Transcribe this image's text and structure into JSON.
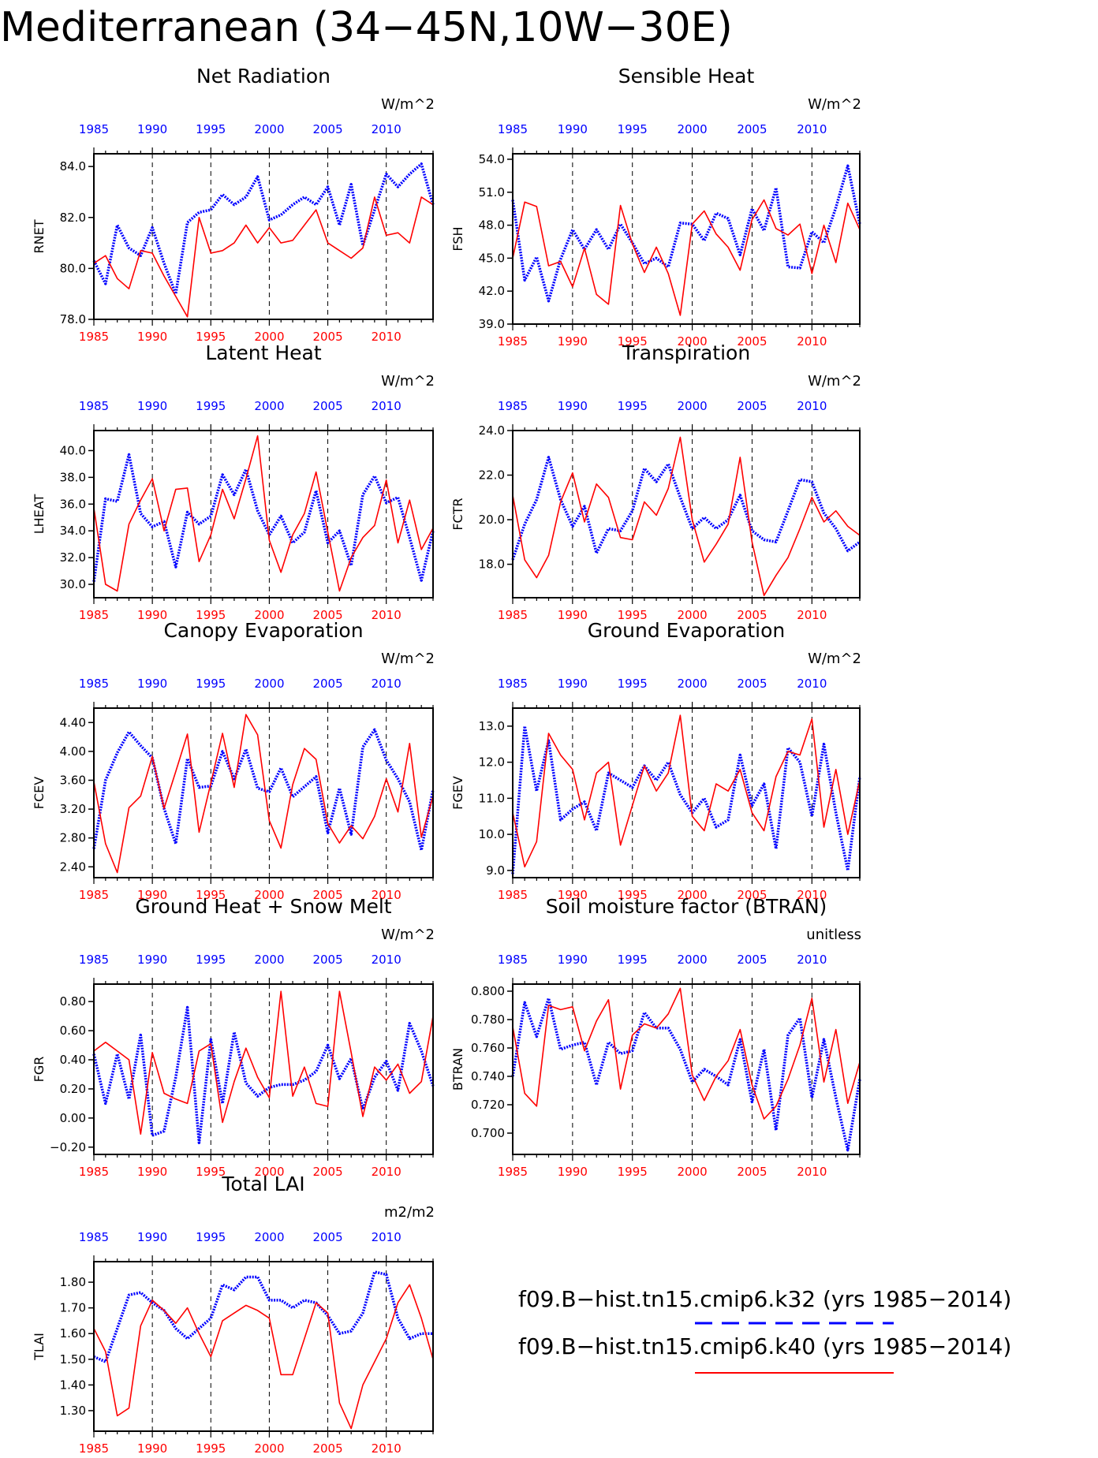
{
  "title": "Mediterranean (34−45N,10W−30E)",
  "colors": {
    "k32": "#0000ff",
    "k40": "#ff0000",
    "axis": "#000000"
  },
  "legend": [
    {
      "label": "f09.B−hist.tn15.cmip6.k32 (yrs 1985−2014)",
      "color": "#0000ff",
      "style": "dashed"
    },
    {
      "label": "f09.B−hist.tn15.cmip6.k40 (yrs 1985−2014)",
      "color": "#ff0000",
      "style": "solid"
    }
  ],
  "chart_data": [
    {
      "type": "line",
      "id": "rnet",
      "title": "Net Radiation",
      "ylabel": "RNET",
      "units": "W/m^2",
      "xlim": [
        1985,
        2014
      ],
      "xticks": [
        1985,
        1990,
        1995,
        2000,
        2005,
        2010
      ],
      "ylim": [
        78.0,
        84.5
      ],
      "yticks": [
        "78.0",
        "80.0",
        "82.0",
        "84.0"
      ],
      "x": [
        1985,
        1986,
        1987,
        1988,
        1989,
        1990,
        1991,
        1992,
        1993,
        1994,
        1995,
        1996,
        1997,
        1998,
        1999,
        2000,
        2001,
        2002,
        2003,
        2004,
        2005,
        2006,
        2007,
        2008,
        2009,
        2010,
        2011,
        2012,
        2013,
        2014
      ],
      "series": [
        {
          "key": "k32",
          "values": [
            80.3,
            79.4,
            81.7,
            80.8,
            80.5,
            81.6,
            80.2,
            79.0,
            81.8,
            82.2,
            82.3,
            82.9,
            82.5,
            82.8,
            83.6,
            81.9,
            82.1,
            82.5,
            82.8,
            82.5,
            83.2,
            81.7,
            83.3,
            80.9,
            82.3,
            83.7,
            83.2,
            83.7,
            84.1,
            82.5
          ]
        },
        {
          "key": "k40",
          "values": [
            80.2,
            80.5,
            79.6,
            79.2,
            80.7,
            80.6,
            79.7,
            78.9,
            78.1,
            82.0,
            80.6,
            80.7,
            81.0,
            81.7,
            81.0,
            81.6,
            81.0,
            81.1,
            81.7,
            82.3,
            81.0,
            80.7,
            80.4,
            80.8,
            82.8,
            81.3,
            81.4,
            81.0,
            82.8,
            82.5
          ]
        }
      ]
    },
    {
      "type": "line",
      "id": "fsh",
      "title": "Sensible Heat",
      "ylabel": "FSH",
      "units": "W/m^2",
      "xlim": [
        1985,
        2014
      ],
      "xticks": [
        1985,
        1990,
        1995,
        2000,
        2005,
        2010
      ],
      "ylim": [
        39.0,
        54.5
      ],
      "yticks": [
        "39.0",
        "42.0",
        "45.0",
        "48.0",
        "51.0",
        "54.0"
      ],
      "x": [
        1985,
        1986,
        1987,
        1988,
        1989,
        1990,
        1991,
        1992,
        1993,
        1994,
        1995,
        1996,
        1997,
        1998,
        1999,
        2000,
        2001,
        2002,
        2003,
        2004,
        2005,
        2006,
        2007,
        2008,
        2009,
        2010,
        2011,
        2012,
        2013,
        2014
      ],
      "series": [
        {
          "key": "k32",
          "values": [
            50.3,
            43.0,
            45.1,
            41.1,
            44.9,
            47.6,
            45.8,
            47.6,
            45.8,
            48.1,
            46.4,
            44.5,
            45.0,
            44.2,
            48.2,
            48.1,
            46.6,
            49.1,
            48.6,
            45.3,
            49.5,
            47.5,
            51.4,
            44.2,
            44.1,
            47.4,
            46.4,
            49.6,
            53.4,
            48.1
          ]
        },
        {
          "key": "k40",
          "values": [
            45.0,
            50.1,
            49.7,
            44.3,
            44.7,
            42.4,
            45.9,
            41.7,
            40.8,
            49.8,
            46.3,
            43.7,
            46.0,
            43.6,
            39.8,
            48.1,
            49.3,
            47.2,
            46.0,
            43.9,
            48.5,
            50.3,
            47.7,
            47.1,
            48.1,
            43.6,
            48.0,
            44.6,
            50.0,
            47.6
          ]
        }
      ]
    },
    {
      "type": "line",
      "id": "lheat",
      "title": "Latent Heat",
      "ylabel": "LHEAT",
      "units": "W/m^2",
      "xlim": [
        1985,
        2014
      ],
      "xticks": [
        1985,
        1990,
        1995,
        2000,
        2005,
        2010
      ],
      "ylim": [
        29.0,
        41.5
      ],
      "yticks": [
        "30.0",
        "32.0",
        "34.0",
        "36.0",
        "38.0",
        "40.0"
      ],
      "x": [
        1985,
        1986,
        1987,
        1988,
        1989,
        1990,
        1991,
        1992,
        1993,
        1994,
        1995,
        1996,
        1997,
        1998,
        1999,
        2000,
        2001,
        2002,
        2003,
        2004,
        2005,
        2006,
        2007,
        2008,
        2009,
        2010,
        2011,
        2012,
        2013,
        2014
      ],
      "series": [
        {
          "key": "k32",
          "values": [
            30.2,
            36.4,
            36.2,
            39.7,
            35.3,
            34.3,
            34.7,
            31.3,
            35.4,
            34.5,
            35.1,
            38.2,
            36.7,
            38.6,
            35.5,
            33.7,
            35.1,
            33.1,
            33.9,
            37.0,
            33.1,
            34.0,
            31.4,
            36.7,
            38.1,
            36.1,
            36.5,
            33.5,
            30.3,
            34.0
          ]
        },
        {
          "key": "k40",
          "values": [
            35.7,
            30.0,
            29.5,
            34.5,
            36.3,
            37.9,
            34.0,
            37.1,
            37.2,
            31.7,
            33.7,
            37.1,
            34.9,
            37.9,
            41.1,
            33.3,
            30.9,
            33.7,
            35.3,
            38.4,
            33.9,
            29.5,
            32.0,
            33.5,
            34.4,
            37.8,
            33.1,
            36.3,
            32.6,
            34.2
          ]
        }
      ]
    },
    {
      "type": "line",
      "id": "fctr",
      "title": "Transpiration",
      "ylabel": "FCTR",
      "units": "W/m^2",
      "xlim": [
        1985,
        2014
      ],
      "xticks": [
        1985,
        1990,
        1995,
        2000,
        2005,
        2010
      ],
      "ylim": [
        16.5,
        24.0
      ],
      "yticks": [
        "18.0",
        "20.0",
        "22.0",
        "24.0"
      ],
      "x": [
        1985,
        1986,
        1987,
        1988,
        1989,
        1990,
        1991,
        1992,
        1993,
        1994,
        1995,
        1996,
        1997,
        1998,
        1999,
        2000,
        2001,
        2002,
        2003,
        2004,
        2005,
        2006,
        2007,
        2008,
        2009,
        2010,
        2011,
        2012,
        2013,
        2014
      ],
      "series": [
        {
          "key": "k32",
          "values": [
            18.2,
            19.8,
            20.9,
            22.8,
            20.9,
            19.7,
            20.6,
            18.5,
            19.6,
            19.5,
            20.4,
            22.3,
            21.7,
            22.5,
            21.0,
            19.6,
            20.1,
            19.6,
            20.0,
            21.1,
            19.5,
            19.1,
            19.0,
            20.4,
            21.8,
            21.7,
            20.3,
            19.6,
            18.6,
            19.0
          ]
        },
        {
          "key": "k40",
          "values": [
            21.1,
            18.2,
            17.4,
            18.4,
            20.8,
            22.1,
            19.9,
            21.6,
            21.0,
            19.2,
            19.1,
            20.8,
            20.2,
            21.4,
            23.7,
            20.0,
            18.1,
            18.9,
            19.8,
            22.8,
            19.0,
            16.6,
            17.5,
            18.3,
            19.6,
            21.0,
            19.9,
            20.4,
            19.7,
            19.3
          ]
        }
      ]
    },
    {
      "type": "line",
      "id": "fcev",
      "title": "Canopy Evaporation",
      "ylabel": "FCEV",
      "units": "W/m^2",
      "xlim": [
        1985,
        2014
      ],
      "xticks": [
        1985,
        1990,
        1995,
        2000,
        2005,
        2010
      ],
      "ylim": [
        2.25,
        4.6
      ],
      "yticks": [
        "2.40",
        "2.80",
        "3.20",
        "3.60",
        "4.00",
        "4.40"
      ],
      "x": [
        1985,
        1986,
        1987,
        1988,
        1989,
        1990,
        1991,
        1992,
        1993,
        1994,
        1995,
        1996,
        1997,
        1998,
        1999,
        2000,
        2001,
        2002,
        2003,
        2004,
        2005,
        2006,
        2007,
        2008,
        2009,
        2010,
        2011,
        2012,
        2013,
        2014
      ],
      "series": [
        {
          "key": "k32",
          "values": [
            2.65,
            3.6,
            3.98,
            4.27,
            4.08,
            3.91,
            3.21,
            2.72,
            3.9,
            3.5,
            3.52,
            4.0,
            3.62,
            4.03,
            3.49,
            3.44,
            3.77,
            3.37,
            3.51,
            3.65,
            2.87,
            3.49,
            2.85,
            4.06,
            4.3,
            3.88,
            3.62,
            3.3,
            2.63,
            3.47
          ]
        },
        {
          "key": "k40",
          "values": [
            3.58,
            2.72,
            2.32,
            3.22,
            3.38,
            3.93,
            3.21,
            3.72,
            4.24,
            2.88,
            3.56,
            4.25,
            3.5,
            4.51,
            4.23,
            3.04,
            2.66,
            3.54,
            4.04,
            3.89,
            3.0,
            2.73,
            2.97,
            2.79,
            3.1,
            3.62,
            3.16,
            4.11,
            2.81,
            3.38
          ]
        }
      ]
    },
    {
      "type": "line",
      "id": "fgev",
      "title": "Ground Evaporation",
      "ylabel": "FGEV",
      "units": "W/m^2",
      "xlim": [
        1985,
        2014
      ],
      "xticks": [
        1985,
        1990,
        1995,
        2000,
        2005,
        2010
      ],
      "ylim": [
        8.8,
        13.5
      ],
      "yticks": [
        "9.0",
        "10.0",
        "11.0",
        "12.0",
        "13.0"
      ],
      "x": [
        1985,
        1986,
        1987,
        1988,
        1989,
        1990,
        1991,
        1992,
        1993,
        1994,
        1995,
        1996,
        1997,
        1998,
        1999,
        2000,
        2001,
        2002,
        2003,
        2004,
        2005,
        2006,
        2007,
        2008,
        2009,
        2010,
        2011,
        2012,
        2013,
        2014
      ],
      "series": [
        {
          "key": "k32",
          "values": [
            8.9,
            13.0,
            11.2,
            12.6,
            10.4,
            10.7,
            10.9,
            10.1,
            11.7,
            11.5,
            11.3,
            11.9,
            11.5,
            12.0,
            11.1,
            10.6,
            11.0,
            10.2,
            10.4,
            12.2,
            10.8,
            11.4,
            9.6,
            12.4,
            12.0,
            10.5,
            12.5,
            10.6,
            9.0,
            11.6
          ]
        },
        {
          "key": "k40",
          "values": [
            10.6,
            9.1,
            9.8,
            12.8,
            12.2,
            11.8,
            10.4,
            11.7,
            12.0,
            9.7,
            10.8,
            11.9,
            11.2,
            11.7,
            13.3,
            10.5,
            10.1,
            11.4,
            11.2,
            11.8,
            10.6,
            10.1,
            11.6,
            12.3,
            12.2,
            13.2,
            10.2,
            11.8,
            10.0,
            11.5
          ]
        }
      ]
    },
    {
      "type": "line",
      "id": "fgr",
      "title": "Ground Heat + Snow Melt",
      "ylabel": "FGR",
      "units": "W/m^2",
      "xlim": [
        1985,
        2014
      ],
      "xticks": [
        1985,
        1990,
        1995,
        2000,
        2005,
        2010
      ],
      "ylim": [
        -0.25,
        0.92
      ],
      "yticks": [
        "−0.20",
        "0.00",
        "0.20",
        "0.40",
        "0.60",
        "0.80"
      ],
      "x": [
        1985,
        1986,
        1987,
        1988,
        1989,
        1990,
        1991,
        1992,
        1993,
        1994,
        1995,
        1996,
        1997,
        1998,
        1999,
        2000,
        2001,
        2002,
        2003,
        2004,
        2005,
        2006,
        2007,
        2008,
        2009,
        2010,
        2011,
        2012,
        2013,
        2014
      ],
      "series": [
        {
          "key": "k32",
          "values": [
            0.44,
            0.1,
            0.44,
            0.13,
            0.57,
            -0.12,
            -0.09,
            0.28,
            0.76,
            -0.17,
            0.54,
            0.1,
            0.59,
            0.24,
            0.15,
            0.21,
            0.23,
            0.23,
            0.26,
            0.32,
            0.5,
            0.27,
            0.41,
            0.06,
            0.28,
            0.39,
            0.19,
            0.65,
            0.46,
            0.22
          ]
        },
        {
          "key": "k40",
          "values": [
            0.46,
            0.52,
            0.46,
            0.4,
            -0.11,
            0.45,
            0.17,
            0.13,
            0.1,
            0.46,
            0.51,
            -0.03,
            0.25,
            0.48,
            0.28,
            0.14,
            0.87,
            0.15,
            0.35,
            0.1,
            0.08,
            0.87,
            0.45,
            0.01,
            0.35,
            0.26,
            0.37,
            0.17,
            0.25,
            0.7
          ]
        }
      ]
    },
    {
      "type": "line",
      "id": "btran",
      "title": "Soil moisture factor (BTRAN)",
      "ylabel": "BTRAN",
      "units": "unitless",
      "xlim": [
        1985,
        2014
      ],
      "xticks": [
        1985,
        1990,
        1995,
        2000,
        2005,
        2010
      ],
      "ylim": [
        0.685,
        0.805
      ],
      "yticks": [
        "0.700",
        "0.720",
        "0.740",
        "0.760",
        "0.780",
        "0.800"
      ],
      "x": [
        1985,
        1986,
        1987,
        1988,
        1989,
        1990,
        1991,
        1992,
        1993,
        1994,
        1995,
        1996,
        1997,
        1998,
        1999,
        2000,
        2001,
        2002,
        2003,
        2004,
        2005,
        2006,
        2007,
        2008,
        2009,
        2010,
        2011,
        2012,
        2013,
        2014
      ],
      "series": [
        {
          "key": "k32",
          "values": [
            0.74,
            0.792,
            0.768,
            0.795,
            0.759,
            0.762,
            0.764,
            0.734,
            0.764,
            0.756,
            0.758,
            0.785,
            0.774,
            0.774,
            0.759,
            0.736,
            0.745,
            0.74,
            0.734,
            0.766,
            0.722,
            0.759,
            0.702,
            0.769,
            0.781,
            0.725,
            0.766,
            0.725,
            0.688,
            0.738
          ]
        },
        {
          "key": "k40",
          "values": [
            0.775,
            0.728,
            0.719,
            0.79,
            0.787,
            0.789,
            0.758,
            0.779,
            0.794,
            0.731,
            0.769,
            0.777,
            0.774,
            0.784,
            0.802,
            0.741,
            0.723,
            0.74,
            0.751,
            0.773,
            0.734,
            0.71,
            0.719,
            0.738,
            0.762,
            0.795,
            0.736,
            0.773,
            0.721,
            0.75
          ]
        }
      ]
    },
    {
      "type": "line",
      "id": "tlai",
      "title": "Total LAI",
      "ylabel": "TLAI",
      "units": "m2/m2",
      "xlim": [
        1985,
        2014
      ],
      "xticks": [
        1985,
        1990,
        1995,
        2000,
        2005,
        2010
      ],
      "ylim": [
        1.22,
        1.88
      ],
      "yticks": [
        "1.30",
        "1.40",
        "1.50",
        "1.60",
        "1.70",
        "1.80"
      ],
      "x": [
        1985,
        1986,
        1987,
        1988,
        1989,
        1990,
        1991,
        1992,
        1993,
        1994,
        1995,
        1996,
        1997,
        1998,
        1999,
        2000,
        2001,
        2002,
        2003,
        2004,
        2005,
        2006,
        2007,
        2008,
        2009,
        2010,
        2011,
        2012,
        2013,
        2014
      ],
      "series": [
        {
          "key": "k32",
          "values": [
            1.51,
            1.49,
            1.62,
            1.75,
            1.76,
            1.72,
            1.69,
            1.62,
            1.58,
            1.62,
            1.66,
            1.79,
            1.77,
            1.82,
            1.82,
            1.73,
            1.73,
            1.7,
            1.73,
            1.72,
            1.67,
            1.6,
            1.61,
            1.68,
            1.84,
            1.83,
            1.66,
            1.58,
            1.6,
            1.6
          ]
        },
        {
          "key": "k40",
          "values": [
            1.62,
            1.53,
            1.28,
            1.31,
            1.63,
            1.73,
            1.69,
            1.64,
            1.7,
            1.6,
            1.51,
            1.65,
            1.68,
            1.71,
            1.69,
            1.66,
            1.44,
            1.44,
            1.58,
            1.72,
            1.68,
            1.33,
            1.23,
            1.4,
            1.49,
            1.58,
            1.72,
            1.79,
            1.66,
            1.5
          ]
        }
      ]
    }
  ]
}
